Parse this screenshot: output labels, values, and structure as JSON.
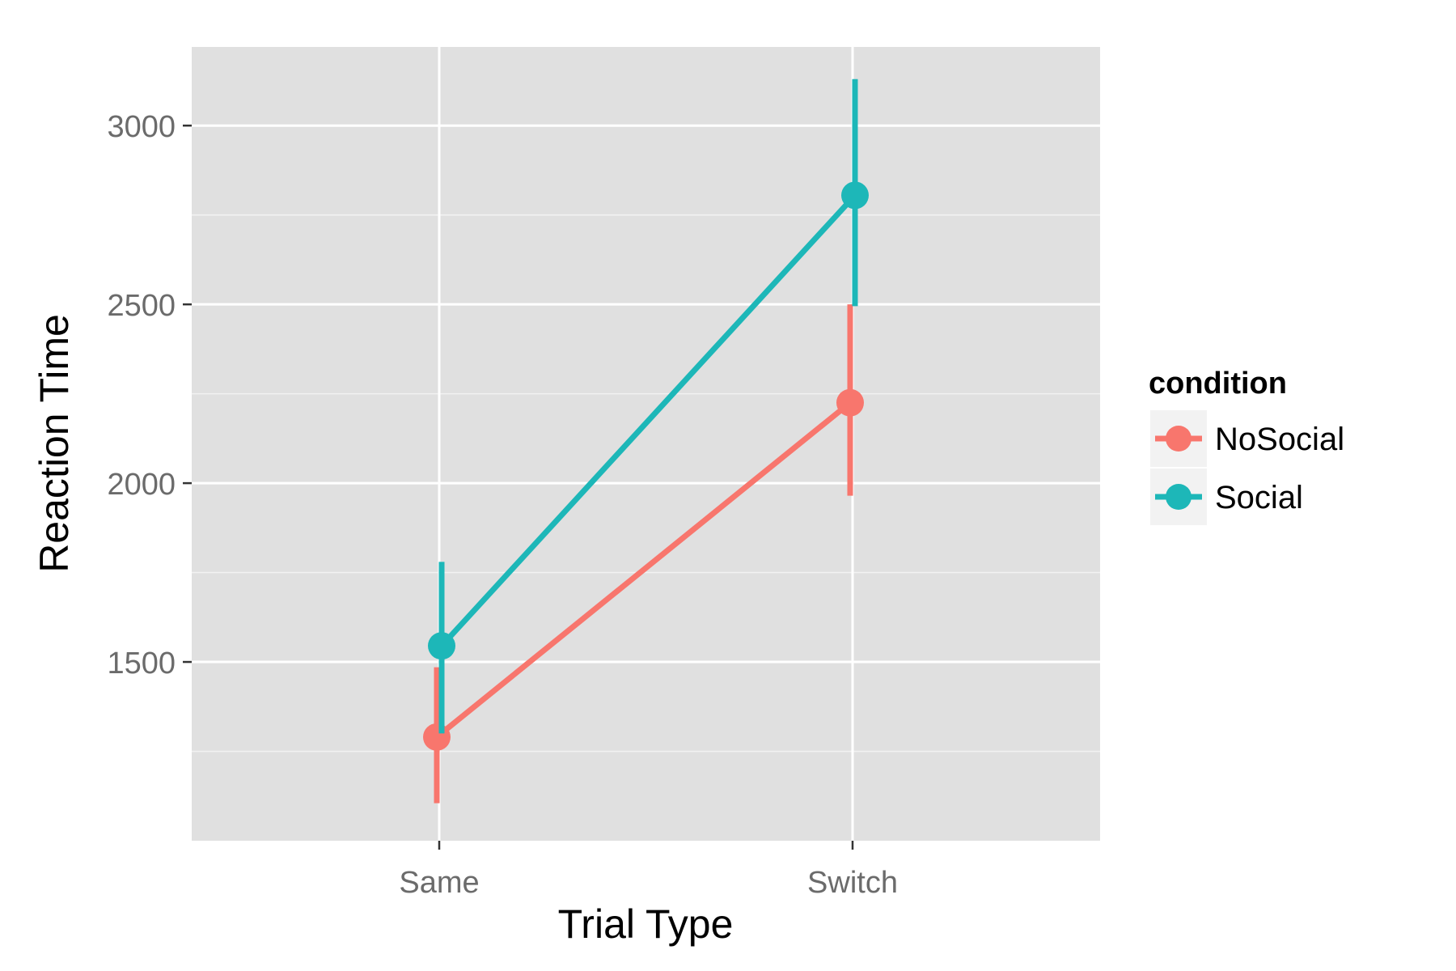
{
  "chart_data": {
    "type": "line",
    "title": "",
    "xlabel": "Trial Type",
    "ylabel": "Reaction Time",
    "categories": [
      "Same",
      "Switch"
    ],
    "ylim": [
      1000,
      3220
    ],
    "yticks": [
      1500,
      2000,
      2500,
      3000
    ],
    "y_tick_labels": [
      "1500",
      "2000",
      "2500",
      "3000"
    ],
    "grid": true,
    "legend": {
      "title": "condition",
      "position": "right"
    },
    "series": [
      {
        "name": "NoSocial",
        "color": "#F8766D",
        "values": [
          1290,
          2225
        ],
        "error_low": [
          1105,
          1965
        ],
        "error_high": [
          1485,
          2500
        ]
      },
      {
        "name": "Social",
        "color": "#1DB7B8",
        "values": [
          1545,
          2805
        ],
        "error_low": [
          1300,
          2495
        ],
        "error_high": [
          1780,
          3130
        ]
      }
    ]
  }
}
